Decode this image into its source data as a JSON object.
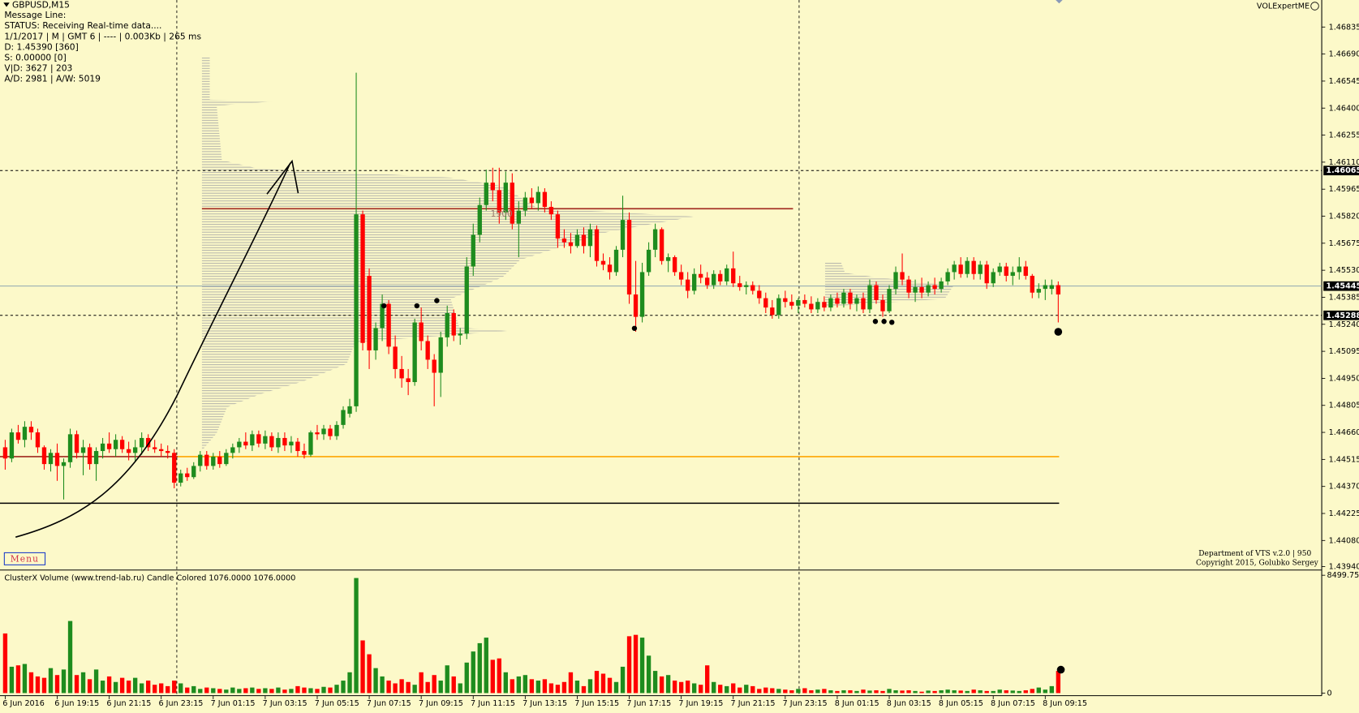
{
  "header": {
    "symbol": "GBPUSD,M15",
    "info": [
      "Message Line:",
      "STATUS:  Receiving Real-time data....",
      "1/1/2017  |  M  | GMT 6 | ---- | 0.003Kb | 265 ms",
      "D: 1.45390   [360]",
      "S: 0.00000    [0]",
      "V|D: 3627  | 203",
      "A/D: 2981  | A/W: 5019"
    ],
    "expert": "VOLExpertME",
    "credits": [
      "Department of VTS  v.2.0 | 950",
      "Copyright 2015, Golubko Sergey"
    ],
    "menu": "Menu",
    "profile_label": "1900",
    "volume_title": "ClusterX Volume (www.trend-lab.ru) Candle Colored 1076.0000 1076.0000"
  },
  "chart_data": {
    "type": "candlestick",
    "title": "GBPUSD,M15",
    "categories": [
      "6 Jun 2016",
      null,
      null,
      null,
      null,
      null,
      null,
      null,
      "6 Jun 19:15",
      null,
      null,
      null,
      null,
      null,
      null,
      null,
      "6 Jun 21:15",
      null,
      null,
      null,
      null,
      null,
      null,
      null,
      "6 Jun 23:15",
      null,
      null,
      null,
      null,
      null,
      null,
      null,
      "7 Jun 01:15",
      null,
      null,
      null,
      null,
      null,
      null,
      null,
      "7 Jun 03:15",
      null,
      null,
      null,
      null,
      null,
      null,
      null,
      "7 Jun 05:15",
      null,
      null,
      null,
      null,
      null,
      null,
      null,
      "7 Jun 07:15",
      null,
      null,
      null,
      null,
      null,
      null,
      null,
      "7 Jun 09:15",
      null,
      null,
      null,
      null,
      null,
      null,
      null,
      "7 Jun 11:15",
      null,
      null,
      null,
      null,
      null,
      null,
      null,
      "7 Jun 13:15",
      null,
      null,
      null,
      null,
      null,
      null,
      null,
      "7 Jun 15:15",
      null,
      null,
      null,
      null,
      null,
      null,
      null,
      "7 Jun 17:15",
      null,
      null,
      null,
      null,
      null,
      null,
      null,
      "7 Jun 19:15",
      null,
      null,
      null,
      null,
      null,
      null,
      null,
      "7 Jun 21:15",
      null,
      null,
      null,
      null,
      null,
      null,
      null,
      "7 Jun 23:15",
      null,
      null,
      null,
      null,
      null,
      null,
      null,
      "8 Jun 01:15",
      null,
      null,
      null,
      null,
      null,
      null,
      null,
      "8 Jun 03:15",
      null,
      null,
      null,
      null,
      null,
      null,
      null,
      "8 Jun 05:15",
      null,
      null,
      null,
      null,
      null,
      null,
      null,
      "8 Jun 07:15",
      null,
      null,
      null,
      null,
      null,
      null,
      null,
      "8 Jun 09:15",
      null,
      null
    ],
    "open": [
      1.4458,
      1.4452,
      1.4466,
      1.4462,
      1.4469,
      1.4466,
      1.4458,
      1.4449,
      1.4455,
      1.4448,
      1.445,
      1.4465,
      1.4455,
      1.4458,
      1.4449,
      1.4456,
      1.446,
      1.4457,
      1.4462,
      1.4457,
      1.4455,
      1.4458,
      1.4463,
      1.4458,
      1.4457,
      1.4456,
      1.4455,
      1.4439,
      1.4444,
      1.4442,
      1.4448,
      1.4454,
      1.4448,
      1.4453,
      1.4449,
      1.4455,
      1.4458,
      1.4461,
      1.4459,
      1.4465,
      1.446,
      1.4464,
      1.4458,
      1.4463,
      1.4459,
      1.4461,
      1.4456,
      1.4454,
      1.4466,
      1.4465,
      1.4468,
      1.4464,
      1.447,
      1.4476,
      1.448,
      1.4583,
      1.455,
      1.451,
      1.4522,
      1.4535,
      1.4512,
      1.45,
      1.4495,
      1.4493,
      1.4525,
      1.4515,
      1.4505,
      1.4498,
      1.4517,
      1.453,
      1.4518,
      1.4519,
      1.4555,
      1.4572,
      1.4588,
      1.46,
      1.4596,
      1.4584,
      1.46,
      1.4578,
      1.4585,
      1.4592,
      1.4589,
      1.4595,
      1.4587,
      1.4583,
      1.457,
      1.4568,
      1.4566,
      1.4572,
      1.4566,
      1.4575,
      1.4558,
      1.4556,
      1.4552,
      1.4564,
      1.458,
      1.454,
      1.4528,
      1.4552,
      1.4564,
      1.4575,
      1.4558,
      1.456,
      1.4552,
      1.4548,
      1.4542,
      1.4551,
      1.4549,
      1.4545,
      1.4551,
      1.4547,
      1.4554,
      1.4546,
      1.4544,
      1.4545,
      1.4542,
      1.4538,
      1.4533,
      1.4529,
      1.4538,
      1.4536,
      1.4534,
      1.4537,
      1.4535,
      1.4532,
      1.4536,
      1.4533,
      1.4538,
      1.4535,
      1.4541,
      1.4535,
      1.4538,
      1.4532,
      1.4545,
      1.4537,
      1.4531,
      1.4543,
      1.4552,
      1.4548,
      1.4541,
      1.4544,
      1.4541,
      1.4545,
      1.4543,
      1.4547,
      1.4552,
      1.4556,
      1.4551,
      1.4558,
      1.4551,
      1.4556,
      1.4546,
      1.4552,
      1.4555,
      1.455,
      1.4552,
      1.4555,
      1.455,
      1.4541,
      1.4543,
      1.4543,
      1.4545
    ],
    "high": [
      1.4462,
      1.4468,
      1.447,
      1.4472,
      1.4472,
      1.4468,
      1.4459,
      1.4457,
      1.446,
      1.4452,
      1.4468,
      1.4467,
      1.4462,
      1.446,
      1.4458,
      1.4463,
      1.4466,
      1.4465,
      1.4464,
      1.4461,
      1.4462,
      1.4466,
      1.4465,
      1.4462,
      1.446,
      1.4459,
      1.4457,
      1.4446,
      1.4447,
      1.445,
      1.4456,
      1.4456,
      1.4455,
      1.4456,
      1.4457,
      1.446,
      1.4463,
      1.4466,
      1.4467,
      1.4467,
      1.4467,
      1.4466,
      1.4466,
      1.4466,
      1.4464,
      1.4463,
      1.446,
      1.4467,
      1.447,
      1.447,
      1.447,
      1.4472,
      1.448,
      1.4484,
      1.4659,
      1.4585,
      1.4554,
      1.4525,
      1.454,
      1.4537,
      1.4518,
      1.4507,
      1.45,
      1.4527,
      1.4533,
      1.4518,
      1.4508,
      1.452,
      1.4534,
      1.4532,
      1.4522,
      1.456,
      1.4578,
      1.4592,
      1.4607,
      1.4608,
      1.4608,
      1.4606,
      1.4605,
      1.459,
      1.4595,
      1.4597,
      1.4598,
      1.4597,
      1.459,
      1.4585,
      1.4575,
      1.4573,
      1.4575,
      1.4576,
      1.4578,
      1.4577,
      1.4562,
      1.456,
      1.4566,
      1.4593,
      1.4584,
      1.4558,
      1.4557,
      1.4568,
      1.4578,
      1.4576,
      1.4562,
      1.4561,
      1.4556,
      1.4552,
      1.4554,
      1.4556,
      1.4552,
      1.4553,
      1.4553,
      1.4556,
      1.4563,
      1.455,
      1.4547,
      1.4547,
      1.4545,
      1.4541,
      1.4537,
      1.454,
      1.4542,
      1.454,
      1.4538,
      1.454,
      1.4539,
      1.4538,
      1.4539,
      1.454,
      1.4541,
      1.4543,
      1.4543,
      1.454,
      1.4541,
      1.4548,
      1.4547,
      1.454,
      1.4545,
      1.4555,
      1.4562,
      1.455,
      1.4548,
      1.4549,
      1.4547,
      1.4549,
      1.4549,
      1.4554,
      1.4558,
      1.456,
      1.456,
      1.456,
      1.4558,
      1.4558,
      1.4554,
      1.4557,
      1.4557,
      1.4555,
      1.456,
      1.4558,
      1.4551,
      1.4546,
      1.4548,
      1.4548,
      1.4547
    ],
    "low": [
      1.4446,
      1.445,
      1.446,
      1.4458,
      1.4462,
      1.4455,
      1.4446,
      1.4445,
      1.444,
      1.443,
      1.4447,
      1.4452,
      1.4443,
      1.4446,
      1.444,
      1.4452,
      1.4455,
      1.4453,
      1.4455,
      1.4451,
      1.445,
      1.4454,
      1.4456,
      1.4455,
      1.4453,
      1.4452,
      1.4436,
      1.4437,
      1.444,
      1.4441,
      1.4445,
      1.4446,
      1.4446,
      1.4447,
      1.4448,
      1.4452,
      1.4455,
      1.4457,
      1.4456,
      1.4458,
      1.4457,
      1.4456,
      1.4455,
      1.4456,
      1.4455,
      1.4453,
      1.4452,
      1.4453,
      1.4462,
      1.4462,
      1.4462,
      1.4462,
      1.4468,
      1.4474,
      1.4477,
      1.451,
      1.45,
      1.4505,
      1.4515,
      1.4508,
      1.4495,
      1.449,
      1.4486,
      1.4491,
      1.451,
      1.45,
      1.448,
      1.4485,
      1.4512,
      1.4515,
      1.4513,
      1.4516,
      1.455,
      1.4568,
      1.4585,
      1.459,
      1.4578,
      1.458,
      1.4575,
      1.456,
      1.4582,
      1.4586,
      1.4585,
      1.4584,
      1.458,
      1.4565,
      1.4565,
      1.4562,
      1.4565,
      1.4562,
      1.456,
      1.4555,
      1.4553,
      1.4548,
      1.455,
      1.456,
      1.4535,
      1.452,
      1.4525,
      1.455,
      1.456,
      1.4556,
      1.4552,
      1.455,
      1.4545,
      1.4538,
      1.454,
      1.4546,
      1.4543,
      1.4543,
      1.4545,
      1.4545,
      1.4544,
      1.4542,
      1.454,
      1.454,
      1.4535,
      1.453,
      1.4527,
      1.4527,
      1.4533,
      1.4532,
      1.453,
      1.4533,
      1.453,
      1.453,
      1.4531,
      1.4531,
      1.4533,
      1.4533,
      1.4532,
      1.4531,
      1.453,
      1.453,
      1.4535,
      1.4528,
      1.453,
      1.454,
      1.4545,
      1.4538,
      1.4536,
      1.4538,
      1.4539,
      1.454,
      1.4541,
      1.4545,
      1.4548,
      1.4549,
      1.4549,
      1.4548,
      1.4548,
      1.4543,
      1.4544,
      1.455,
      1.4547,
      1.4545,
      1.4548,
      1.4548,
      1.4538,
      1.4538,
      1.4537,
      1.454,
      1.4525
    ],
    "close": [
      1.4452,
      1.4466,
      1.4462,
      1.4469,
      1.4466,
      1.4458,
      1.4449,
      1.4455,
      1.4448,
      1.445,
      1.4465,
      1.4455,
      1.4458,
      1.4449,
      1.4456,
      1.446,
      1.4457,
      1.4462,
      1.4457,
      1.4455,
      1.4458,
      1.4463,
      1.4458,
      1.4457,
      1.4456,
      1.4455,
      1.4439,
      1.4444,
      1.4442,
      1.4448,
      1.4454,
      1.4448,
      1.4453,
      1.4449,
      1.4455,
      1.4458,
      1.4461,
      1.4459,
      1.4465,
      1.446,
      1.4464,
      1.4458,
      1.4463,
      1.4459,
      1.4461,
      1.4456,
      1.4454,
      1.4466,
      1.4465,
      1.4468,
      1.4464,
      1.447,
      1.4478,
      1.448,
      1.4583,
      1.4514,
      1.451,
      1.4522,
      1.4535,
      1.4512,
      1.45,
      1.4495,
      1.4493,
      1.4525,
      1.4515,
      1.4505,
      1.4498,
      1.4517,
      1.453,
      1.4518,
      1.4519,
      1.4555,
      1.4572,
      1.4588,
      1.46,
      1.4596,
      1.4584,
      1.46,
      1.4578,
      1.4585,
      1.4592,
      1.4589,
      1.4595,
      1.4587,
      1.4583,
      1.457,
      1.4568,
      1.4566,
      1.4572,
      1.4566,
      1.4575,
      1.4558,
      1.4556,
      1.4552,
      1.4564,
      1.458,
      1.454,
      1.4528,
      1.4552,
      1.4564,
      1.4575,
      1.4558,
      1.456,
      1.4552,
      1.4548,
      1.4542,
      1.4551,
      1.4549,
      1.4545,
      1.4551,
      1.4547,
      1.4554,
      1.4546,
      1.4544,
      1.4545,
      1.4542,
      1.4538,
      1.4533,
      1.4529,
      1.4538,
      1.4536,
      1.4534,
      1.4537,
      1.4535,
      1.4532,
      1.4536,
      1.4533,
      1.4538,
      1.4535,
      1.4541,
      1.4535,
      1.4538,
      1.4532,
      1.4545,
      1.4537,
      1.4531,
      1.4543,
      1.4552,
      1.4548,
      1.4541,
      1.4544,
      1.4541,
      1.4545,
      1.4543,
      1.4547,
      1.4552,
      1.4556,
      1.4551,
      1.4558,
      1.4551,
      1.4556,
      1.4546,
      1.4552,
      1.4555,
      1.455,
      1.4552,
      1.4555,
      1.455,
      1.4541,
      1.4543,
      1.4545,
      1.4545,
      1.454
    ],
    "volume": [
      4300,
      1900,
      2000,
      2100,
      1500,
      1200,
      1100,
      1800,
      1300,
      1700,
      5200,
      1300,
      1500,
      1000,
      1700,
      900,
      1200,
      800,
      1100,
      900,
      1100,
      700,
      900,
      600,
      700,
      500,
      900,
      700,
      400,
      500,
      300,
      400,
      350,
      300,
      250,
      400,
      300,
      350,
      400,
      300,
      350,
      300,
      400,
      250,
      300,
      500,
      400,
      350,
      300,
      450,
      400,
      600,
      900,
      1500,
      8300,
      3800,
      2800,
      1800,
      1200,
      900,
      700,
      1000,
      800,
      600,
      1500,
      800,
      1300,
      900,
      2000,
      1200,
      700,
      2200,
      3000,
      3600,
      4000,
      2400,
      2500,
      1500,
      1000,
      1200,
      1300,
      1000,
      900,
      1000,
      700,
      600,
      800,
      1500,
      900,
      500,
      1000,
      1600,
      1400,
      1100,
      800,
      1900,
      4100,
      4200,
      4000,
      2700,
      1600,
      1200,
      1300,
      900,
      800,
      900,
      700,
      600,
      2000,
      800,
      600,
      500,
      700,
      400,
      600,
      500,
      300,
      400,
      350,
      300,
      250,
      200,
      300,
      350,
      200,
      250,
      300,
      200,
      150,
      200,
      200,
      150,
      250,
      180,
      200,
      150,
      300,
      200,
      180,
      200,
      150,
      100,
      180,
      150,
      200,
      250,
      200,
      180,
      150,
      250,
      200,
      150,
      150,
      250,
      200,
      180,
      150,
      200,
      300,
      400,
      250,
      500,
      1600
    ],
    "up_color": "#1e8c1e",
    "down_color": "#ff0000",
    "ylim": [
      1.43926,
      1.4698
    ],
    "yticks": [
      1.46835,
      {
        "value": 1.4669,
        "label": "1.46690"
      },
      1.46545,
      {
        "value": 1.464,
        "label": "1.46400"
      },
      1.46255,
      {
        "value": 1.4611,
        "label": "1.46110"
      },
      1.45965,
      {
        "value": 1.4582,
        "label": "1.45820"
      },
      1.45675,
      {
        "value": 1.4553,
        "label": "1.45530"
      },
      1.45385,
      {
        "value": 1.4524,
        "label": "1.45240"
      },
      1.45095,
      {
        "value": 1.4495,
        "label": "1.44950"
      },
      1.44805,
      {
        "value": 1.4466,
        "label": "1.44660"
      },
      1.44515,
      {
        "value": 1.4437,
        "label": "1.44370"
      },
      1.44225,
      {
        "value": 1.4408,
        "label": "1.44080"
      },
      {
        "value": 1.4394,
        "label": "1.43940"
      }
    ],
    "y2lim": [
      0,
      8499.75
    ],
    "y2ticks": [
      8499.75,
      0
    ],
    "levels": [
      {
        "value": 1.46065,
        "dashed": true,
        "color": "#000000"
      },
      {
        "value": 1.45445,
        "dashed": false,
        "color": "#7f9aae"
      },
      {
        "value": 1.45288,
        "dashed": true,
        "color": "#000000"
      }
    ],
    "lines": [
      {
        "value": 1.4453,
        "color": "#ffa500"
      },
      {
        "value": 1.4428,
        "color": "#000000"
      },
      {
        "value": 1.4586,
        "color": "#a0281e"
      }
    ]
  }
}
